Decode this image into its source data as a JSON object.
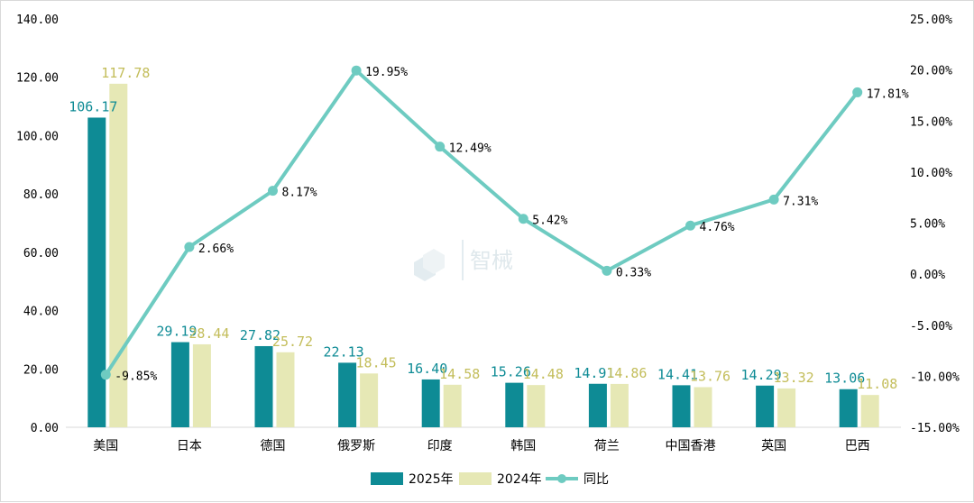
{
  "chart_data": {
    "type": "bar",
    "title": "",
    "categories": [
      "美国",
      "日本",
      "德国",
      "俄罗斯",
      "印度",
      "韩国",
      "荷兰",
      "中国香港",
      "英国",
      "巴西"
    ],
    "series": [
      {
        "name": "2025年",
        "type": "bar",
        "axis": "left",
        "color": "#0e8b95",
        "values": [
          106.17,
          29.19,
          27.82,
          22.13,
          16.4,
          15.26,
          14.91,
          14.41,
          14.29,
          13.06
        ],
        "labels": [
          "106.17",
          "29.19",
          "27.82",
          "22.13",
          "16.40",
          "15.26",
          "14.91",
          "14.41",
          "14.29",
          "13.06"
        ]
      },
      {
        "name": "2024年",
        "type": "bar",
        "axis": "left",
        "color": "#e6e8b5",
        "label_color": "#c3bd5a",
        "values": [
          117.78,
          28.44,
          25.72,
          18.45,
          14.58,
          14.48,
          14.86,
          13.76,
          13.32,
          11.08
        ],
        "labels": [
          "117.78",
          "28.44",
          "25.72",
          "18.45",
          "14.58",
          "14.48",
          "14.86",
          "13.76",
          "13.32",
          "11.08"
        ]
      },
      {
        "name": "同比",
        "type": "line",
        "axis": "right",
        "color": "#6ecbc1",
        "values": [
          -9.85,
          2.66,
          8.17,
          19.95,
          12.49,
          5.42,
          0.33,
          4.76,
          7.31,
          17.81
        ],
        "labels": [
          "-9.85%",
          "2.66%",
          "8.17%",
          "19.95%",
          "12.49%",
          "5.42%",
          "0.33%",
          "4.76%",
          "7.31%",
          "17.81%"
        ]
      }
    ],
    "ylim": [
      0,
      140
    ],
    "yticks": [
      "0.00",
      "20.00",
      "40.00",
      "60.00",
      "80.00",
      "100.00",
      "120.00",
      "140.00"
    ],
    "y2lim": [
      -15,
      25
    ],
    "y2ticks": [
      "-15.00%",
      "-10.00%",
      "-5.00%",
      "0.00%",
      "5.00%",
      "10.00%",
      "15.00%",
      "20.00%",
      "25.00%"
    ],
    "grid": false,
    "legend": "bottom-center",
    "watermark": "智械"
  }
}
